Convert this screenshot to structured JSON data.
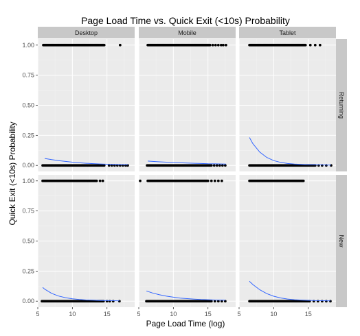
{
  "chart_data": {
    "type": "scatter",
    "title": "Page Load Time vs. Quick Exit (<10s) Probability",
    "xlabel": "Page Load Time (log)",
    "ylabel": "Quick Exit (<10s) Probability",
    "xlim": [
      5,
      19
    ],
    "ylim": [
      -0.05,
      1.05
    ],
    "x_ticks": [
      5,
      10,
      15
    ],
    "y_ticks": [
      "0.00",
      "0.25",
      "0.50",
      "0.75",
      "1.00"
    ],
    "y_tick_values": [
      0,
      0.25,
      0.5,
      0.75,
      1.0
    ],
    "facet_columns": [
      "Desktop",
      "Mobile",
      "Tablet"
    ],
    "facet_rows": [
      "Returning",
      "New"
    ],
    "point_color": "#000000",
    "curve_color": "#3366ff",
    "panel_background": "#ebebeb",
    "strip_background": "#c8c8c8",
    "grid": true,
    "panels": [
      {
        "column": "Desktop",
        "row": "Returning",
        "exit_points": {
          "range": [
            5.8,
            14.6
          ],
          "extra": [
            16.9
          ]
        },
        "stay_points": {
          "range": [
            5.7,
            14.6
          ],
          "extra": [
            15.3,
            15.7,
            16.1,
            16.5,
            16.9,
            17.3,
            17.7,
            18.0
          ]
        },
        "curve": {
          "x": [
            6,
            7,
            8,
            9,
            10,
            11,
            12,
            13,
            14,
            15,
            16,
            17,
            18
          ],
          "y": [
            0.058,
            0.048,
            0.04,
            0.033,
            0.027,
            0.022,
            0.018,
            0.015,
            0.012,
            0.01,
            0.008,
            0.007,
            0.005
          ]
        }
      },
      {
        "column": "Mobile",
        "row": "Returning",
        "exit_points": {
          "range": [
            6.3,
            15.3
          ],
          "extra": [
            15.7,
            16.1,
            16.5,
            16.9,
            17.2,
            17.6
          ]
        },
        "stay_points": {
          "range": [
            6.2,
            15.5
          ],
          "extra": [
            15.9,
            16.3,
            16.7,
            17.1,
            17.5
          ]
        },
        "curve": {
          "x": [
            6.3,
            7,
            8,
            9,
            10,
            11,
            12,
            13,
            14,
            15,
            16,
            17,
            17.6
          ],
          "y": [
            0.036,
            0.033,
            0.03,
            0.027,
            0.024,
            0.022,
            0.02,
            0.018,
            0.016,
            0.014,
            0.013,
            0.012,
            0.011
          ]
        }
      },
      {
        "column": "Tablet",
        "row": "Returning",
        "exit_points": {
          "range": [
            6.5,
            14.6
          ],
          "extra": [
            15.3,
            16.0,
            16.7
          ]
        },
        "stay_points": {
          "range": [
            6.5,
            16.0
          ],
          "extra": [
            16.5,
            17.0,
            17.6,
            18.3
          ]
        },
        "curve": {
          "x": [
            6.5,
            7,
            8,
            9,
            10,
            11,
            12,
            13,
            14,
            15,
            16,
            17,
            18.3
          ],
          "y": [
            0.232,
            0.18,
            0.11,
            0.066,
            0.04,
            0.025,
            0.016,
            0.011,
            0.008,
            0.006,
            0.005,
            0.004,
            0.003
          ]
        }
      },
      {
        "column": "Desktop",
        "row": "New",
        "exit_points": {
          "range": [
            5.7,
            13.5
          ],
          "extra": [
            14.0,
            14.4
          ]
        },
        "stay_points": {
          "range": [
            5.6,
            14.5
          ],
          "extra": [
            15.0,
            15.4,
            15.9,
            16.8
          ]
        },
        "curve": {
          "x": [
            5.7,
            6,
            7,
            8,
            9,
            10,
            11,
            12,
            13,
            14,
            15,
            16,
            16.8
          ],
          "y": [
            0.115,
            0.1,
            0.065,
            0.043,
            0.029,
            0.02,
            0.014,
            0.01,
            0.008,
            0.006,
            0.005,
            0.004,
            0.003
          ]
        }
      },
      {
        "column": "Mobile",
        "row": "New",
        "exit_points": {
          "range": [
            6.3,
            15.0
          ],
          "extra": [
            5.2,
            15.5,
            16.0,
            16.5,
            17.0
          ]
        },
        "stay_points": {
          "range": [
            6.1,
            15.5
          ],
          "extra": [
            16.0,
            16.5,
            17.0,
            17.5
          ]
        },
        "curve": {
          "x": [
            6.1,
            7,
            8,
            9,
            10,
            11,
            12,
            13,
            14,
            15,
            16,
            17,
            17.5
          ],
          "y": [
            0.085,
            0.068,
            0.053,
            0.042,
            0.033,
            0.026,
            0.021,
            0.017,
            0.014,
            0.012,
            0.01,
            0.009,
            0.008
          ]
        }
      },
      {
        "column": "Tablet",
        "row": "New",
        "exit_points": {
          "range": [
            6.5,
            14.3
          ],
          "extra": []
        },
        "stay_points": {
          "range": [
            6.5,
            15.2
          ],
          "extra": [
            15.8,
            16.4,
            17.0,
            17.6,
            18.2
          ]
        },
        "curve": {
          "x": [
            6.5,
            7,
            8,
            9,
            10,
            11,
            12,
            13,
            14,
            15,
            16,
            17,
            18.2
          ],
          "y": [
            0.165,
            0.138,
            0.095,
            0.063,
            0.041,
            0.027,
            0.018,
            0.012,
            0.009,
            0.007,
            0.005,
            0.004,
            0.003
          ]
        }
      }
    ]
  }
}
